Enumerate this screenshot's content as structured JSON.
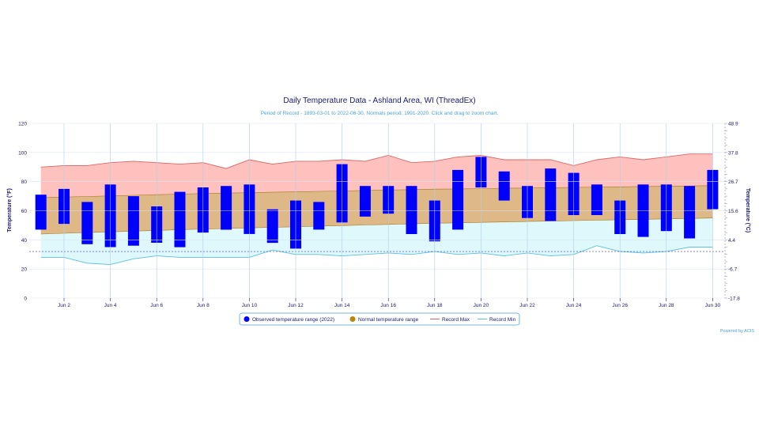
{
  "chart_data": {
    "type": "bar",
    "title": "Daily Temperature Data - Ashland Area, WI (ThreadEx)",
    "subtitle": "Period of Record - 1893-03-01 to 2022-06-30. Normals period: 1991-2020. Click and drag to zoom chart.",
    "ylabel": "Temperature (°F)",
    "y2label": "Temperature (°C)",
    "ylim": [
      0,
      120
    ],
    "y_ticks": [
      "0",
      "20",
      "40",
      "60",
      "80",
      "100",
      "120"
    ],
    "y2_ticks": [
      "-17.8",
      "-6.7",
      "4.4",
      "15.6",
      "26.7",
      "37.8",
      "48.9"
    ],
    "x_ticks": [
      "Jun 2",
      "Jun 4",
      "Jun 6",
      "Jun 8",
      "Jun 10",
      "Jun 12",
      "Jun 14",
      "Jun 16",
      "Jun 18",
      "Jun 20",
      "Jun 22",
      "Jun 24",
      "Jun 26",
      "Jun 28",
      "Jun 30"
    ],
    "days": [
      1,
      2,
      3,
      4,
      5,
      6,
      7,
      8,
      9,
      10,
      11,
      12,
      13,
      14,
      15,
      16,
      17,
      18,
      19,
      20,
      21,
      22,
      23,
      24,
      25,
      26,
      27,
      28,
      29,
      30
    ],
    "series": [
      {
        "name": "Observed temperature range (2022)",
        "color": "#0000ff",
        "low": [
          47,
          51,
          37,
          35,
          36,
          38,
          35,
          45,
          47,
          44,
          38,
          34,
          47,
          52,
          56,
          58,
          44,
          39,
          47,
          76,
          67,
          55,
          53,
          57,
          57,
          44,
          42,
          46,
          41,
          61
        ],
        "high": [
          71,
          75,
          66,
          78,
          70,
          63,
          73,
          76,
          77,
          78,
          61,
          67,
          66,
          92,
          77,
          77,
          77,
          67,
          88,
          97,
          87,
          77,
          89,
          86,
          78,
          67,
          78,
          78,
          77,
          88
        ]
      },
      {
        "name": "Normal temperature range",
        "color": "#b8860b",
        "low": [
          44,
          44.5,
          45,
          45.5,
          46,
          46.5,
          47,
          47.4,
          47.8,
          48.2,
          48.6,
          49,
          49.4,
          49.8,
          50.2,
          50.6,
          51,
          51.4,
          51.7,
          52,
          52.3,
          52.6,
          52.9,
          53.2,
          53.5,
          53.8,
          54.1,
          54.4,
          54.7,
          55
        ],
        "high": [
          69,
          69.4,
          69.8,
          70.2,
          70.6,
          71,
          71.4,
          71.8,
          72.1,
          72.4,
          72.7,
          73,
          73.3,
          73.6,
          73.9,
          74.2,
          74.5,
          74.8,
          75,
          75.2,
          75.4,
          75.6,
          75.8,
          76,
          76.2,
          76.4,
          76.6,
          76.8,
          77,
          77.2
        ]
      },
      {
        "name": "Record Max",
        "color": "#e06666",
        "values": [
          90,
          91,
          91,
          93,
          94,
          93,
          92,
          93,
          89,
          95,
          92,
          94,
          94,
          95,
          94,
          98,
          93,
          94,
          97,
          98,
          95,
          95,
          95,
          91,
          95,
          97,
          95,
          97,
          99,
          99
        ]
      },
      {
        "name": "Record Min",
        "color": "#5bc0de",
        "values": [
          28,
          28,
          24,
          23,
          27,
          29,
          28,
          28,
          28,
          28,
          33,
          30,
          30,
          29,
          30,
          31,
          30,
          32,
          30,
          31,
          29,
          31,
          29,
          30,
          36,
          32,
          31,
          32,
          35,
          35
        ]
      }
    ],
    "reference_line": 32,
    "legend_position": "bottom-center",
    "grid": true
  },
  "credits": "Powered by ACIS"
}
